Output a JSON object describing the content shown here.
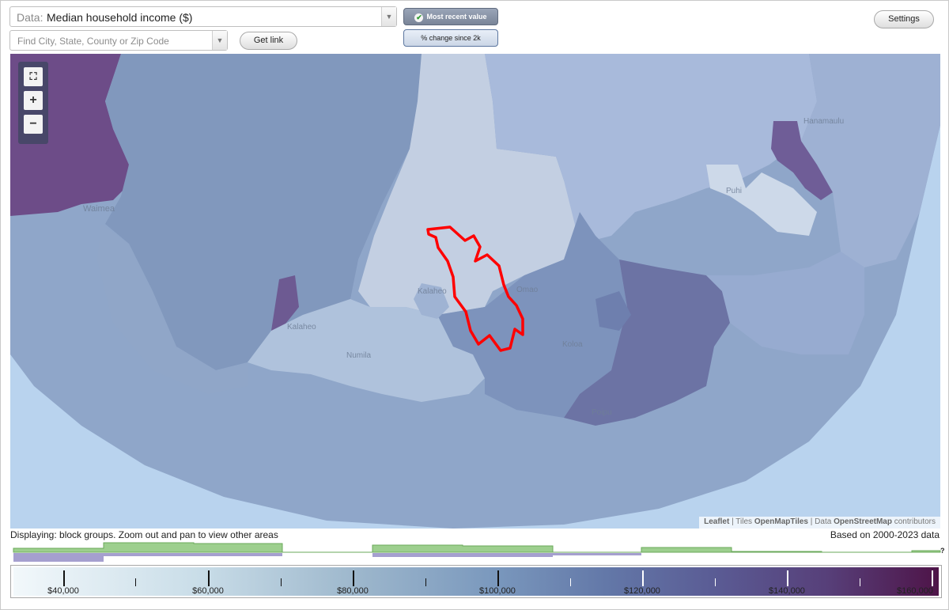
{
  "data_select": {
    "prefix": "Data:",
    "value": "Median household income ($)",
    "arrow_icon": "chevron-down-icon"
  },
  "find": {
    "placeholder": "Find City, State, County or Zip Code"
  },
  "buttons": {
    "get_link": "Get link",
    "most_recent": "Most recent value",
    "pct_change": "% change since 2k",
    "settings": "Settings"
  },
  "map": {
    "labels": [
      "Waimea",
      "Hanamaulu",
      "Puhi",
      "Kalaheo",
      "Koloa",
      "Omao",
      "Numila",
      "Kalaheo",
      "Poipu"
    ],
    "zoom": {
      "fullscreen_icon": "fullscreen-icon",
      "zoom_in": "+",
      "zoom_out": "−"
    },
    "attribution": {
      "leaflet": "Leaflet",
      "sep1": " | Tiles ",
      "tiles": "OpenMapTiles",
      "sep2": " | Data ",
      "data": "OpenStreetMap",
      "suffix": " contributors"
    },
    "colors": {
      "ocean": "#b9d3ee",
      "highlight_outline": "#ff0000"
    }
  },
  "footer": {
    "displaying": "Displaying: block groups. Zoom out and pan to view other areas",
    "based_on": "Based on 2000-2023 data",
    "unknown_mark": "?"
  },
  "legend": {
    "ticks": [
      {
        "label": "$40,000"
      },
      {
        "label": "$60,000"
      },
      {
        "label": "$80,000"
      },
      {
        "label": "$100,000"
      },
      {
        "label": "$120,000"
      },
      {
        "label": "$140,000"
      },
      {
        "label": "$160,000"
      }
    ]
  }
}
